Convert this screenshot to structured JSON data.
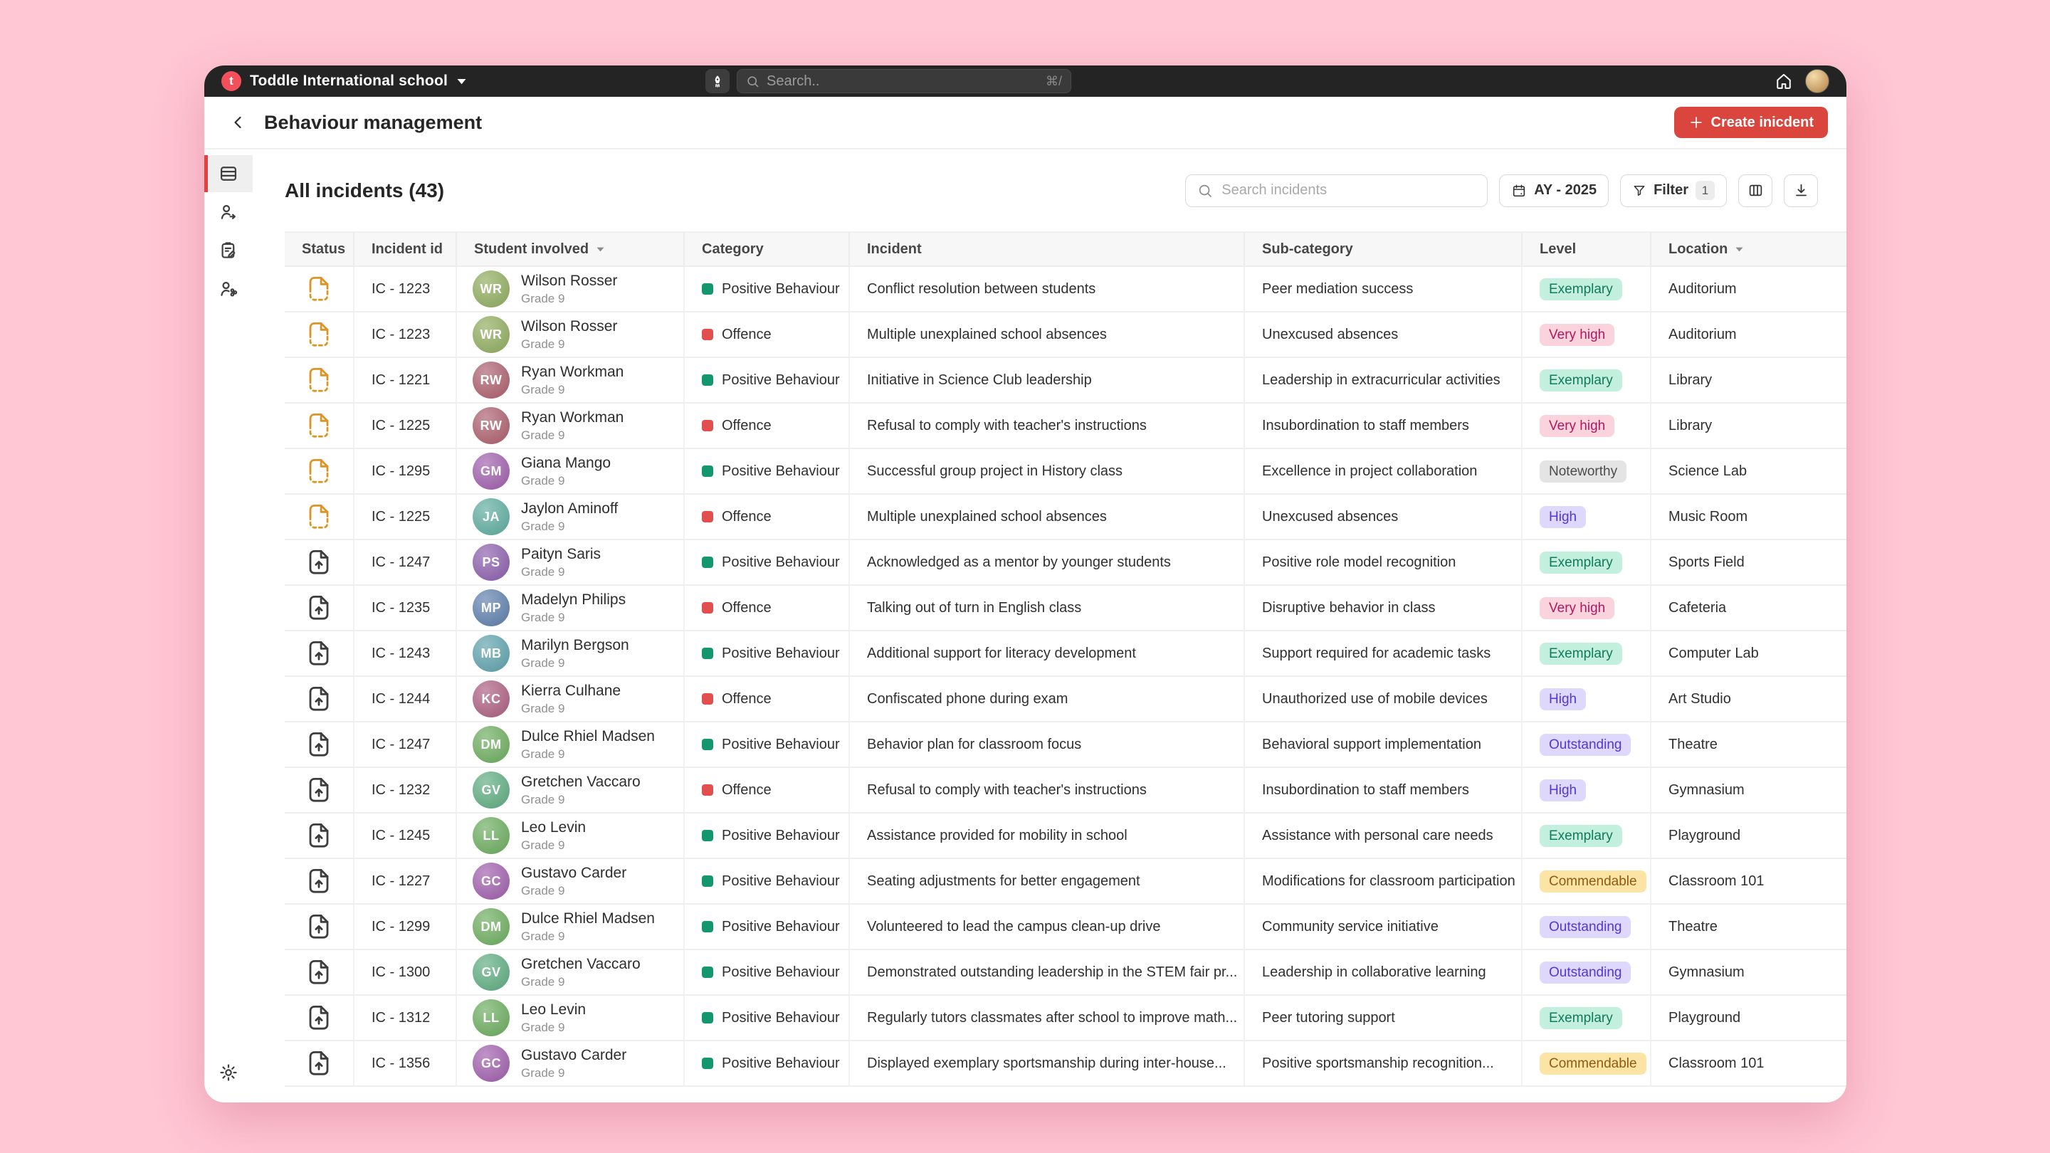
{
  "topbar": {
    "logo_letter": "t",
    "school_name": "Toddle International school",
    "search_placeholder": "Search..",
    "shortcut_hint": "⌘/"
  },
  "header": {
    "title": "Behaviour management",
    "create_button_label": "Create inicdent"
  },
  "toolbar": {
    "heading": "All incidents (43)",
    "search_placeholder": "Search incidents",
    "academic_year_label": "AY - 2025",
    "filter_label": "Filter",
    "filter_count": "1"
  },
  "table": {
    "columns": [
      {
        "label": "Status",
        "sortable": false
      },
      {
        "label": "Incident id",
        "sortable": false
      },
      {
        "label": "Student involved",
        "sortable": true
      },
      {
        "label": "Category",
        "sortable": false
      },
      {
        "label": "Incident",
        "sortable": false
      },
      {
        "label": "Sub-category",
        "sortable": false
      },
      {
        "label": "Level",
        "sortable": false
      },
      {
        "label": "Location",
        "sortable": true
      }
    ],
    "rows": [
      {
        "status": "draft",
        "incident_id": "IC - 1223",
        "student": "Wilson Rosser",
        "grade": "Grade 9",
        "category": "Positive Behaviour",
        "incident": "Conflict resolution between students",
        "sub_category": "Peer mediation success",
        "level": "Exemplary",
        "location": "Auditorium"
      },
      {
        "status": "draft",
        "incident_id": "IC - 1223",
        "student": "Wilson Rosser",
        "grade": "Grade 9",
        "category": "Offence",
        "incident": "Multiple unexplained school absences",
        "sub_category": "Unexcused absences",
        "level": "Very high",
        "location": "Auditorium"
      },
      {
        "status": "draft",
        "incident_id": "IC - 1221",
        "student": "Ryan Workman",
        "grade": "Grade 9",
        "category": "Positive Behaviour",
        "incident": "Initiative in Science Club leadership",
        "sub_category": "Leadership in extracurricular activities",
        "level": "Exemplary",
        "location": "Library"
      },
      {
        "status": "draft",
        "incident_id": "IC - 1225",
        "student": "Ryan Workman",
        "grade": "Grade 9",
        "category": "Offence",
        "incident": "Refusal to comply with teacher's instructions",
        "sub_category": "Insubordination to staff members",
        "level": "Very high",
        "location": "Library"
      },
      {
        "status": "draft",
        "incident_id": "IC - 1295",
        "student": "Giana Mango",
        "grade": "Grade 9",
        "category": "Positive Behaviour",
        "incident": "Successful group project in History class",
        "sub_category": "Excellence in project collaboration",
        "level": "Noteworthy",
        "location": "Science Lab"
      },
      {
        "status": "draft",
        "incident_id": "IC - 1225",
        "student": "Jaylon Aminoff",
        "grade": "Grade 9",
        "category": "Offence",
        "incident": "Multiple unexplained school absences",
        "sub_category": "Unexcused absences",
        "level": "High",
        "location": "Music Room"
      },
      {
        "status": "submitted",
        "incident_id": "IC - 1247",
        "student": "Paityn Saris",
        "grade": "Grade 9",
        "category": "Positive Behaviour",
        "incident": "Acknowledged as a mentor by younger students",
        "sub_category": "Positive role model recognition",
        "level": "Exemplary",
        "location": "Sports Field"
      },
      {
        "status": "submitted",
        "incident_id": "IC - 1235",
        "student": "Madelyn Philips",
        "grade": "Grade 9",
        "category": "Offence",
        "incident": "Talking out of turn in English class",
        "sub_category": "Disruptive behavior in class",
        "level": "Very high",
        "location": "Cafeteria"
      },
      {
        "status": "submitted",
        "incident_id": "IC - 1243",
        "student": "Marilyn Bergson",
        "grade": "Grade 9",
        "category": "Positive Behaviour",
        "incident": "Additional support for literacy development",
        "sub_category": "Support required for academic tasks",
        "level": "Exemplary",
        "location": "Computer Lab"
      },
      {
        "status": "submitted",
        "incident_id": "IC - 1244",
        "student": "Kierra Culhane",
        "grade": "Grade 9",
        "category": "Offence",
        "incident": "Confiscated phone during exam",
        "sub_category": "Unauthorized use of mobile devices",
        "level": "High",
        "location": "Art Studio"
      },
      {
        "status": "submitted",
        "incident_id": "IC - 1247",
        "student": "Dulce Rhiel Madsen",
        "grade": "Grade 9",
        "category": "Positive Behaviour",
        "incident": "Behavior plan for classroom focus",
        "sub_category": "Behavioral support implementation",
        "level": "Outstanding",
        "location": "Theatre"
      },
      {
        "status": "submitted",
        "incident_id": "IC - 1232",
        "student": "Gretchen Vaccaro",
        "grade": "Grade 9",
        "category": "Offence",
        "incident": "Refusal to comply with teacher's instructions",
        "sub_category": "Insubordination to staff members",
        "level": "High",
        "location": "Gymnasium"
      },
      {
        "status": "submitted",
        "incident_id": "IC - 1245",
        "student": "Leo Levin",
        "grade": "Grade 9",
        "category": "Positive Behaviour",
        "incident": "Assistance provided for mobility in school",
        "sub_category": "Assistance with personal care needs",
        "level": "Exemplary",
        "location": "Playground"
      },
      {
        "status": "submitted",
        "incident_id": "IC - 1227",
        "student": "Gustavo Carder",
        "grade": "Grade 9",
        "category": "Positive Behaviour",
        "incident": "Seating adjustments for better engagement",
        "sub_category": "Modifications for classroom participation",
        "level": "Commendable",
        "location": "Classroom 101"
      },
      {
        "status": "submitted",
        "incident_id": "IC - 1299",
        "student": "Dulce Rhiel Madsen",
        "grade": "Grade 9",
        "category": "Positive Behaviour",
        "incident": "Volunteered to lead the campus clean-up drive",
        "sub_category": "Community service initiative",
        "level": "Outstanding",
        "location": "Theatre"
      },
      {
        "status": "submitted",
        "incident_id": "IC - 1300",
        "student": "Gretchen Vaccaro",
        "grade": "Grade 9",
        "category": "Positive Behaviour",
        "incident": "Demonstrated outstanding leadership in the STEM fair pr...",
        "sub_category": "Leadership in collaborative learning",
        "level": "Outstanding",
        "location": "Gymnasium"
      },
      {
        "status": "submitted",
        "incident_id": "IC - 1312",
        "student": "Leo Levin",
        "grade": "Grade 9",
        "category": "Positive Behaviour",
        "incident": "Regularly tutors classmates after school to improve math...",
        "sub_category": "Peer tutoring support",
        "level": "Exemplary",
        "location": "Playground"
      },
      {
        "status": "submitted",
        "incident_id": "IC - 1356",
        "student": "Gustavo Carder",
        "grade": "Grade 9",
        "category": "Positive Behaviour",
        "incident": "Displayed exemplary sportsmanship during inter-house...",
        "sub_category": "Positive sportsmanship recognition...",
        "level": "Commendable",
        "location": "Classroom 101"
      }
    ]
  },
  "styles": {
    "page_background": "#ffc6d4",
    "topbar_background": "#242424",
    "accent_red": "#da453e",
    "logo_red": "#f4505c",
    "category_colors": {
      "Positive Behaviour": "#14976b",
      "Offence": "#e34f4f"
    },
    "status_icon_colors": {
      "draft": "#dd9426",
      "submitted": "#3d3d3d"
    },
    "level_styles": {
      "Exemplary": {
        "bg": "#c3f0de",
        "fg": "#117a5c"
      },
      "Very high": {
        "bg": "#fad3dd",
        "fg": "#b01960"
      },
      "Noteworthy": {
        "bg": "#e4e4e4",
        "fg": "#4c4c4c"
      },
      "High": {
        "bg": "#ded9fc",
        "fg": "#5038d0"
      },
      "Outstanding": {
        "bg": "#ded9fc",
        "fg": "#5038d0"
      },
      "Commendable": {
        "bg": "#fce5a4",
        "fg": "#8f5a14"
      }
    }
  }
}
